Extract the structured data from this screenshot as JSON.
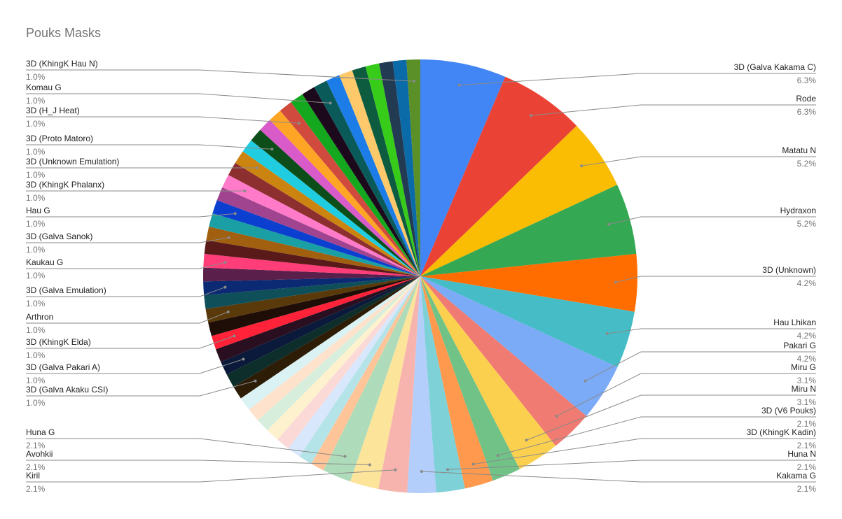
{
  "chart_data": {
    "type": "pie",
    "title": "Pouks Masks",
    "categories": [
      "3D (Galva Kakama C)",
      "Rode",
      "Matatu N",
      "Hydraxon",
      "3D (Unknown)",
      "Hau Lhikan",
      "Pakari G",
      "Miru G",
      "Miru N",
      "3D (V6 Pouks)",
      "3D (KhingK Kadin)",
      "Huna N",
      "Kakama G",
      "Kiril",
      "Avohkii",
      "Huna G",
      null,
      null,
      null,
      null,
      null,
      null,
      null,
      null,
      "3D (Galva Akaku CSI)",
      null,
      "3D (Galva Pakari A)",
      null,
      "3D (KhingK Elda)",
      null,
      "Arthron",
      null,
      "3D (Galva Emulation)",
      null,
      "Kaukau G",
      null,
      "3D (Galva Sanok)",
      null,
      "Hau G",
      null,
      "3D (KhingK Phalanx)",
      null,
      "3D (Unknown Emulation)",
      null,
      "3D (Proto Matoro)",
      null,
      null,
      "3D (H_J Heat)",
      null,
      null,
      "Komau G",
      null,
      null,
      null,
      null,
      null,
      null,
      "3D (KhingK Hau N)"
    ],
    "values": [
      6.3,
      6.3,
      5.2,
      5.2,
      4.2,
      4.2,
      4.2,
      3.1,
      3.1,
      2.1,
      2.1,
      2.1,
      2.1,
      2.1,
      2.1,
      2.1,
      1.0,
      1.0,
      1.0,
      1.0,
      1.0,
      1.0,
      1.0,
      1.0,
      1.0,
      1.0,
      1.0,
      1.0,
      1.0,
      1.0,
      1.0,
      1.0,
      1.0,
      1.0,
      1.0,
      1.0,
      1.0,
      1.0,
      1.0,
      1.0,
      1.0,
      1.0,
      1.0,
      1.0,
      1.0,
      1.0,
      1.0,
      1.0,
      1.0,
      1.0,
      1.0,
      1.0,
      1.0,
      1.0,
      1.0,
      1.0,
      1.0,
      1.0
    ],
    "value_labels": [
      "6.3%",
      "6.3%",
      "5.2%",
      "5.2%",
      "4.2%",
      "4.2%",
      "4.2%",
      "3.1%",
      "3.1%",
      "2.1%",
      "2.1%",
      "2.1%",
      "2.1%",
      "2.1%",
      "2.1%",
      "2.1%",
      null,
      null,
      null,
      null,
      null,
      null,
      null,
      null,
      "1.0%",
      null,
      "1.0%",
      null,
      "1.0%",
      null,
      "1.0%",
      null,
      "1.0%",
      null,
      "1.0%",
      null,
      "1.0%",
      null,
      "1.0%",
      null,
      "1.0%",
      null,
      "1.0%",
      null,
      "1.0%",
      null,
      null,
      "1.0%",
      null,
      null,
      "1.0%",
      null,
      null,
      null,
      null,
      null,
      null,
      "1.0%"
    ],
    "colors": [
      "#4285f4",
      "#ea4335",
      "#fbbc04",
      "#34a853",
      "#ff6d01",
      "#46bdc6",
      "#7baaf7",
      "#f07b72",
      "#fcd04f",
      "#71c287",
      "#ff994d",
      "#7ed1d7",
      "#b3cefb",
      "#f7b4ae",
      "#fde49b",
      "#aedcba",
      "#ffc599",
      "#b5e4e8",
      "#d9e7fd",
      "#fbd9d7",
      "#fef1cd",
      "#d7eedd",
      "#ffe2cc",
      "#daf2f3",
      "#2d1d07",
      "#0d2e2a",
      "#0b1a3a",
      "#2a0f20",
      "#ff2238",
      "#1f0e08",
      "#5a3a0a",
      "#0f4f5a",
      "#0b2a73",
      "#5a1f4a",
      "#ff3d78",
      "#5a1a1a",
      "#a06010",
      "#1a9fa4",
      "#0a3fd0",
      "#a0448f",
      "#ff7ac8",
      "#8e2f2f",
      "#cc8410",
      "#20cde0",
      "#0c4d1a",
      "#d95ac9",
      "#ffa526",
      "#d04b3e",
      "#13a81d",
      "#1c0a1c",
      "#0a5a5a",
      "#1c7de8",
      "#fdc96b",
      "#0d5c40",
      "#38cc1a",
      "#223a52",
      "#0b6aa8",
      "#5b8f27"
    ]
  }
}
